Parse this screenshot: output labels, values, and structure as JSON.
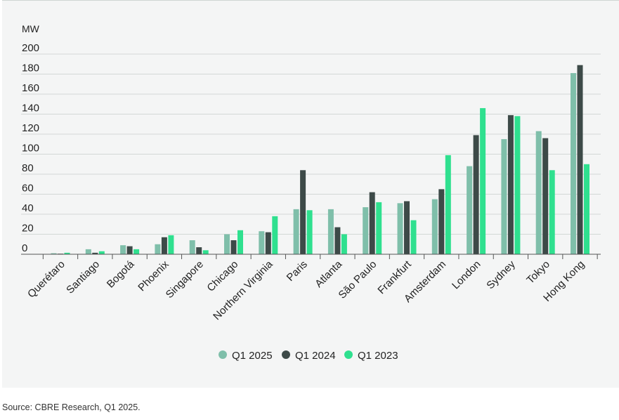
{
  "chart_data": {
    "type": "bar",
    "unit_label": "MW",
    "ylim": [
      0,
      200
    ],
    "yticks": [
      0,
      20,
      40,
      60,
      80,
      100,
      120,
      140,
      160,
      180,
      200
    ],
    "grid": true,
    "legend_position": "bottom-center",
    "categories": [
      "Querétaro",
      "Santiago",
      "Bogotá",
      "Phoenix",
      "Singapore",
      "Chicago",
      "Northern Virginia",
      "Paris",
      "Atlanta",
      "São Paulo",
      "Frankfurt",
      "Amsterdam",
      "London",
      "Sydney",
      "Tokyo",
      "Hong Kong"
    ],
    "series": [
      {
        "name": "Q1 2025",
        "color": "#7fbfaa",
        "values": [
          1,
          5,
          9,
          10,
          14,
          20,
          23,
          45,
          45,
          47,
          51,
          55,
          88,
          115,
          123,
          181
        ]
      },
      {
        "name": "Q1 2024",
        "color": "#3d4a48",
        "values": [
          0.5,
          1.5,
          8,
          17,
          7,
          14,
          22,
          84,
          27,
          62,
          53,
          65,
          119,
          139,
          116,
          189
        ]
      },
      {
        "name": "Q1 2023",
        "color": "#2fe08f",
        "values": [
          1.5,
          3,
          5,
          19,
          4,
          24,
          38,
          44,
          20,
          52,
          34,
          99,
          146,
          138,
          84,
          90
        ]
      }
    ]
  },
  "source": "Source: CBRE Research, Q1 2025."
}
